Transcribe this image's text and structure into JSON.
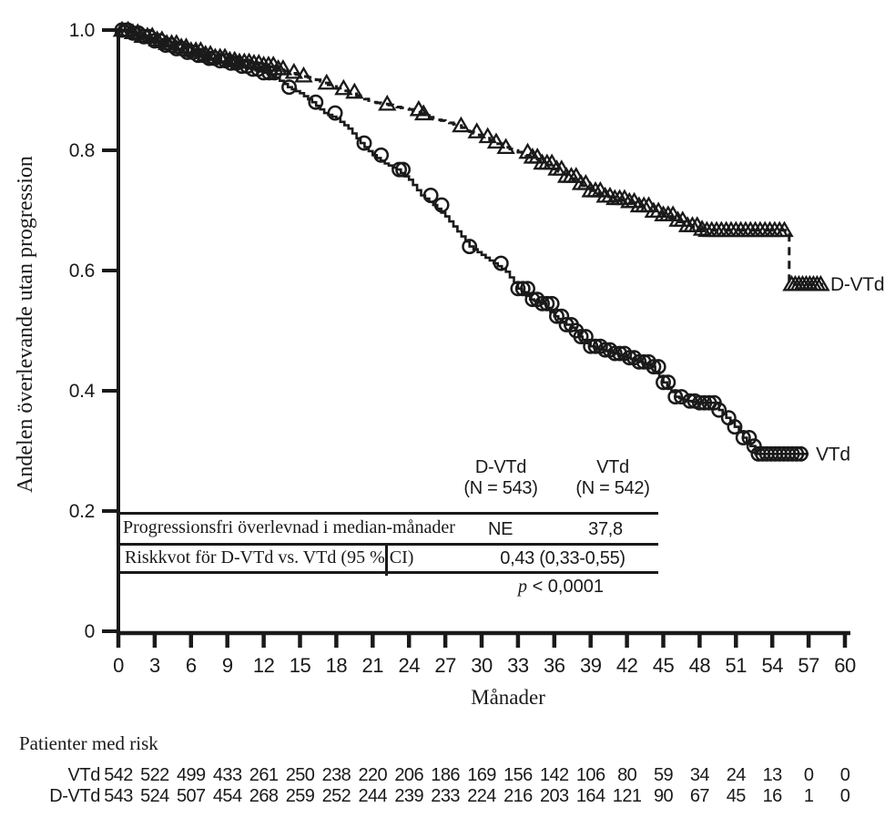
{
  "figure": {
    "ink": "#1a1a1a",
    "background": "#ffffff"
  },
  "chart_data": {
    "type": "line",
    "subtype": "kaplan-meier-step",
    "title": "",
    "xlabel": "Månader",
    "ylabel": "Andelen överlevande utan progression",
    "xlim": [
      0,
      60
    ],
    "ylim": [
      0,
      1.0
    ],
    "grid": false,
    "xticks": [
      0,
      3,
      6,
      9,
      12,
      15,
      18,
      21,
      24,
      27,
      30,
      33,
      36,
      39,
      42,
      45,
      48,
      51,
      54,
      57,
      60
    ],
    "yticks": [
      {
        "v": 1.0,
        "label": "1.0"
      },
      {
        "v": 0.8,
        "label": "0.8"
      },
      {
        "v": 0.6,
        "label": "0.6"
      },
      {
        "v": 0.4,
        "label": "0.4"
      },
      {
        "v": 0.2,
        "label": "0.2"
      },
      {
        "v": 0.0,
        "label": "0"
      }
    ],
    "series": [
      {
        "name": "D-VTd",
        "end_label": "D-VTd",
        "line": "dashed",
        "marker": "triangle",
        "label_at": [
          58.8,
          0.577
        ],
        "points": [
          [
            0,
            1.0
          ],
          [
            1,
            0.996
          ],
          [
            2,
            0.99
          ],
          [
            3,
            0.984
          ],
          [
            4,
            0.978
          ],
          [
            5,
            0.972
          ],
          [
            6,
            0.966
          ],
          [
            7,
            0.96
          ],
          [
            8,
            0.955
          ],
          [
            9,
            0.95
          ],
          [
            10,
            0.947
          ],
          [
            11,
            0.945
          ],
          [
            12,
            0.942
          ],
          [
            13,
            0.936
          ],
          [
            14,
            0.93
          ],
          [
            15,
            0.924
          ],
          [
            16,
            0.92
          ],
          [
            17,
            0.912
          ],
          [
            18,
            0.903
          ],
          [
            19,
            0.897
          ],
          [
            20,
            0.888
          ],
          [
            21,
            0.88
          ],
          [
            22,
            0.877
          ],
          [
            23,
            0.872
          ],
          [
            24,
            0.868
          ],
          [
            25,
            0.861
          ],
          [
            26,
            0.852
          ],
          [
            27,
            0.848
          ],
          [
            28,
            0.841
          ],
          [
            29,
            0.831
          ],
          [
            30,
            0.823
          ],
          [
            31,
            0.814
          ],
          [
            32,
            0.805
          ],
          [
            33,
            0.797
          ],
          [
            34,
            0.789
          ],
          [
            35,
            0.779
          ],
          [
            36,
            0.769
          ],
          [
            37,
            0.757
          ],
          [
            38,
            0.745
          ],
          [
            39,
            0.733
          ],
          [
            40,
            0.724
          ],
          [
            41,
            0.72
          ],
          [
            42,
            0.715
          ],
          [
            43,
            0.708
          ],
          [
            44,
            0.699
          ],
          [
            45,
            0.693
          ],
          [
            46,
            0.684
          ],
          [
            47,
            0.675
          ],
          [
            48,
            0.669
          ],
          [
            48.6,
            0.667
          ],
          [
            55.4,
            0.667
          ],
          [
            55.4,
            0.577
          ],
          [
            58.2,
            0.577
          ]
        ],
        "censor_marks": [
          0.3,
          0.8,
          1.2,
          1.6,
          2,
          2.4,
          2.8,
          3.2,
          3.6,
          4,
          4.4,
          4.8,
          5.2,
          5.6,
          6,
          6.4,
          6.8,
          7.2,
          7.6,
          8,
          8.4,
          8.8,
          9.2,
          9.6,
          10,
          10.4,
          10.8,
          11.2,
          11.6,
          12,
          12.4,
          12.8,
          13.2,
          13.6,
          14.5,
          15.3,
          17.2,
          18.6,
          19.5,
          22.2,
          24.8,
          25.2,
          28.3,
          29.6,
          30.5,
          31.2,
          32,
          33.8,
          34.2,
          34.6,
          35,
          35.4,
          35.8,
          36.2,
          36.6,
          37,
          37.4,
          37.8,
          38.2,
          38.6,
          39,
          39.4,
          39.8,
          40.2,
          40.6,
          41,
          41.4,
          41.8,
          42.2,
          42.6,
          43,
          43.4,
          43.8,
          44.2,
          44.6,
          45,
          45.4,
          45.8,
          46.2,
          46.6,
          47,
          47.4,
          47.8,
          48.2,
          48.6,
          49,
          49.4,
          49.8,
          50.2,
          50.6,
          51,
          51.4,
          51.8,
          52.2,
          52.6,
          53,
          53.4,
          53.8,
          54.2,
          54.6,
          55,
          55.6,
          55.9,
          56.2,
          56.5,
          56.8,
          57.1,
          57.4,
          57.7,
          58
        ]
      },
      {
        "name": "VTd",
        "end_label": "VTd",
        "line": "solid",
        "marker": "circle",
        "label_at": [
          57.6,
          0.295
        ],
        "points": [
          [
            0,
            1.0
          ],
          [
            0.9,
            0.995
          ],
          [
            1.8,
            0.989
          ],
          [
            2.7,
            0.982
          ],
          [
            3.6,
            0.975
          ],
          [
            4.5,
            0.969
          ],
          [
            5.4,
            0.963
          ],
          [
            6.3,
            0.958
          ],
          [
            7.2,
            0.953
          ],
          [
            8.1,
            0.949
          ],
          [
            9,
            0.945
          ],
          [
            10,
            0.94
          ],
          [
            11,
            0.935
          ],
          [
            12,
            0.929
          ],
          [
            13,
            0.921
          ],
          [
            14,
            0.905
          ],
          [
            15,
            0.895
          ],
          [
            16,
            0.88
          ],
          [
            17,
            0.862
          ],
          [
            18,
            0.853
          ],
          [
            19,
            0.836
          ],
          [
            20,
            0.812
          ],
          [
            21,
            0.792
          ],
          [
            22,
            0.778
          ],
          [
            23,
            0.768
          ],
          [
            24,
            0.751
          ],
          [
            25,
            0.725
          ],
          [
            26,
            0.709
          ],
          [
            27,
            0.69
          ],
          [
            28,
            0.665
          ],
          [
            29,
            0.64
          ],
          [
            30,
            0.626
          ],
          [
            31,
            0.612
          ],
          [
            32,
            0.598
          ],
          [
            33,
            0.57
          ],
          [
            34,
            0.552
          ],
          [
            35,
            0.545
          ],
          [
            36,
            0.524
          ],
          [
            37,
            0.51
          ],
          [
            37.8,
            0.5
          ],
          [
            38,
            0.49
          ],
          [
            39,
            0.474
          ],
          [
            40,
            0.468
          ],
          [
            41,
            0.462
          ],
          [
            42,
            0.455
          ],
          [
            43,
            0.448
          ],
          [
            44,
            0.44
          ],
          [
            45,
            0.414
          ],
          [
            46,
            0.39
          ],
          [
            47,
            0.383
          ],
          [
            48,
            0.38
          ],
          [
            49.4,
            0.38
          ],
          [
            49.6,
            0.368
          ],
          [
            50.2,
            0.355
          ],
          [
            50.9,
            0.34
          ],
          [
            51.6,
            0.322
          ],
          [
            52.2,
            0.308
          ],
          [
            52.6,
            0.295
          ],
          [
            57,
            0.295
          ]
        ],
        "censor_marks": [
          0.3,
          0.75,
          1.2,
          1.65,
          2.1,
          2.55,
          3,
          3.45,
          3.9,
          4.35,
          4.8,
          5.25,
          5.7,
          6.15,
          6.6,
          7.05,
          7.5,
          7.95,
          8.4,
          8.85,
          9.3,
          9.75,
          10.2,
          10.65,
          11.1,
          11.55,
          12,
          12.45,
          12.9,
          14.1,
          16.3,
          17.9,
          20.3,
          21.7,
          23.2,
          23.5,
          25.8,
          26.7,
          29,
          31.6,
          33,
          33.4,
          33.8,
          34.2,
          34.6,
          35,
          35.4,
          35.8,
          36.2,
          36.6,
          37,
          37.4,
          37.8,
          38.2,
          38.6,
          39,
          39.4,
          39.8,
          40.2,
          40.6,
          41,
          41.4,
          41.8,
          42.2,
          42.6,
          43,
          43.4,
          43.8,
          44.2,
          44.6,
          45,
          45.4,
          46,
          46.5,
          47.2,
          47.6,
          48,
          48.4,
          48.8,
          49.2,
          49.6,
          50.4,
          50.9,
          51.6,
          52.1,
          52.5,
          52.85,
          53.2,
          53.55,
          53.9,
          54.25,
          54.6,
          54.95,
          55.3,
          55.65,
          56,
          56.35
        ]
      }
    ]
  },
  "stats_table": {
    "col_headers": [
      {
        "name": "D-VTd",
        "n": "(N = 543)"
      },
      {
        "name": "VTd",
        "n": "(N = 542)"
      }
    ],
    "rows": [
      {
        "label": "Progressionsfri överlevnad i median-månader",
        "dvtd": "NE",
        "vtd": "37,8"
      },
      {
        "label": "Riskkvot för D-VTd vs. VTd (95 % CI)",
        "combined": "0,43 (0,33-0,55)"
      }
    ],
    "p_prefix": "p",
    "p_rest": " < 0,0001"
  },
  "risk_table": {
    "title": "Patienter med risk",
    "months": [
      0,
      3,
      6,
      9,
      12,
      15,
      18,
      21,
      24,
      27,
      30,
      33,
      36,
      39,
      42,
      45,
      48,
      51,
      54,
      57,
      60
    ],
    "rows": [
      {
        "label": "VTd",
        "counts": [
          542,
          522,
          499,
          433,
          261,
          250,
          238,
          220,
          206,
          186,
          169,
          156,
          142,
          106,
          80,
          59,
          34,
          24,
          13,
          0,
          0
        ]
      },
      {
        "label": "D-VTd",
        "counts": [
          543,
          524,
          507,
          454,
          268,
          259,
          252,
          244,
          239,
          233,
          224,
          216,
          203,
          164,
          121,
          90,
          67,
          45,
          16,
          1,
          0
        ]
      }
    ]
  }
}
